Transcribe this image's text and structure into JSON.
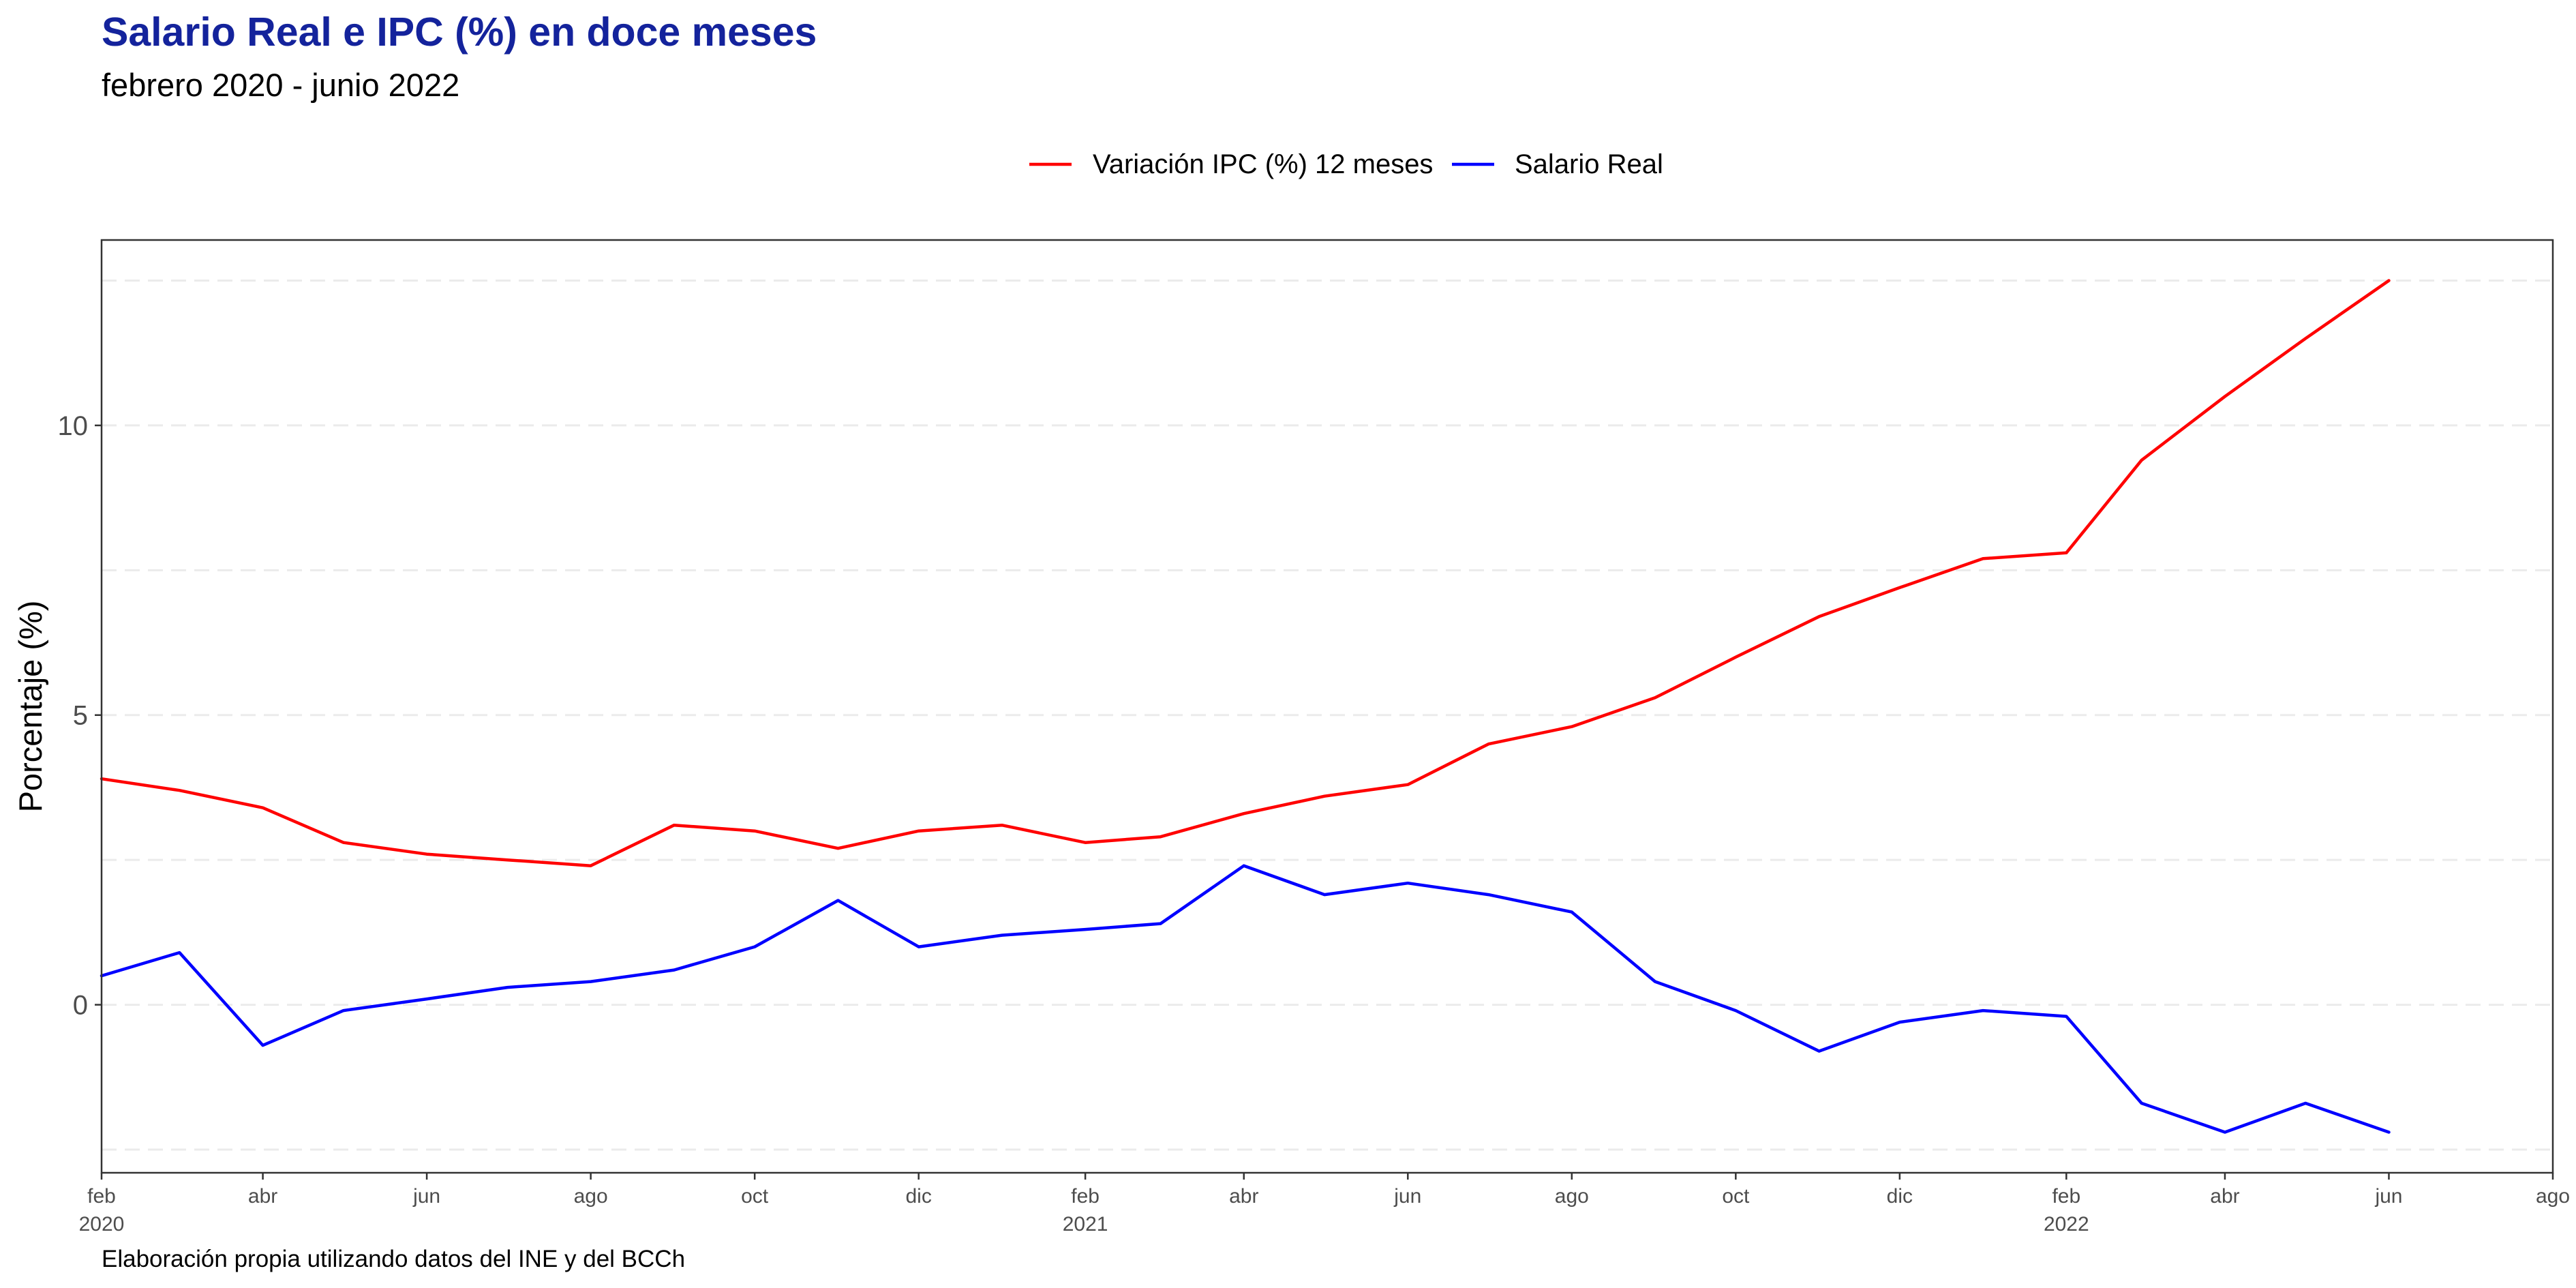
{
  "chart_data": {
    "type": "line",
    "title": "Salario Real e IPC (%) en doce meses",
    "subtitle": "febrero 2020 - junio 2022",
    "ylabel": "Porcentaje (%)",
    "xlabel": "",
    "caption": "Elaboración propia utilizando datos del INE y del BCCh",
    "title_color": "#14239C",
    "legend_position": "top",
    "grid": true,
    "grid_style": "dashed",
    "ylim": [
      -2.9,
      13.2
    ],
    "xlim": [
      "2020-02-01",
      "2022-08-01"
    ],
    "y_ticks": [
      {
        "value": 0,
        "label": "0"
      },
      {
        "value": 5,
        "label": "5"
      },
      {
        "value": 10,
        "label": "10"
      }
    ],
    "y_minor_gridlines": [
      -2.5,
      2.5,
      7.5,
      12.5
    ],
    "x_ticks": [
      {
        "date": "2020-02-01",
        "label": "feb",
        "year": "2020"
      },
      {
        "date": "2020-04-01",
        "label": "abr",
        "year": ""
      },
      {
        "date": "2020-06-01",
        "label": "jun",
        "year": ""
      },
      {
        "date": "2020-08-01",
        "label": "ago",
        "year": ""
      },
      {
        "date": "2020-10-01",
        "label": "oct",
        "year": ""
      },
      {
        "date": "2020-12-01",
        "label": "dic",
        "year": ""
      },
      {
        "date": "2021-02-01",
        "label": "feb",
        "year": "2021"
      },
      {
        "date": "2021-04-01",
        "label": "abr",
        "year": ""
      },
      {
        "date": "2021-06-01",
        "label": "jun",
        "year": ""
      },
      {
        "date": "2021-08-01",
        "label": "ago",
        "year": ""
      },
      {
        "date": "2021-10-01",
        "label": "oct",
        "year": ""
      },
      {
        "date": "2021-12-01",
        "label": "dic",
        "year": ""
      },
      {
        "date": "2022-02-01",
        "label": "feb",
        "year": "2022"
      },
      {
        "date": "2022-04-01",
        "label": "abr",
        "year": ""
      },
      {
        "date": "2022-06-01",
        "label": "jun",
        "year": ""
      },
      {
        "date": "2022-08-01",
        "label": "ago",
        "year": ""
      }
    ],
    "x": [
      "2020-02-01",
      "2020-03-01",
      "2020-04-01",
      "2020-05-01",
      "2020-06-01",
      "2020-07-01",
      "2020-08-01",
      "2020-09-01",
      "2020-10-01",
      "2020-11-01",
      "2020-12-01",
      "2021-01-01",
      "2021-02-01",
      "2021-03-01",
      "2021-04-01",
      "2021-05-01",
      "2021-06-01",
      "2021-07-01",
      "2021-08-01",
      "2021-09-01",
      "2021-10-01",
      "2021-11-01",
      "2021-12-01",
      "2022-01-01",
      "2022-02-01",
      "2022-03-01",
      "2022-04-01",
      "2022-05-01",
      "2022-06-01"
    ],
    "series": [
      {
        "name": "Variación IPC (%) 12 meses",
        "color": "#FF0000",
        "values": [
          3.9,
          3.7,
          3.4,
          2.8,
          2.6,
          2.5,
          2.4,
          3.1,
          3.0,
          2.7,
          3.0,
          3.1,
          2.8,
          2.9,
          3.3,
          3.6,
          3.8,
          4.5,
          4.8,
          5.3,
          6.0,
          6.7,
          7.2,
          7.7,
          7.8,
          9.4,
          10.5,
          11.5,
          12.5
        ]
      },
      {
        "name": "Salario Real",
        "color": "#0000FF",
        "values": [
          0.5,
          0.9,
          -0.7,
          -0.1,
          0.1,
          0.3,
          0.4,
          0.6,
          1.0,
          1.8,
          1.0,
          1.2,
          1.3,
          1.4,
          2.4,
          1.9,
          2.1,
          1.9,
          1.6,
          0.4,
          -0.1,
          -0.8,
          -0.3,
          -0.1,
          -0.2,
          -1.7,
          -2.2,
          -1.7,
          -2.2
        ]
      }
    ]
  }
}
